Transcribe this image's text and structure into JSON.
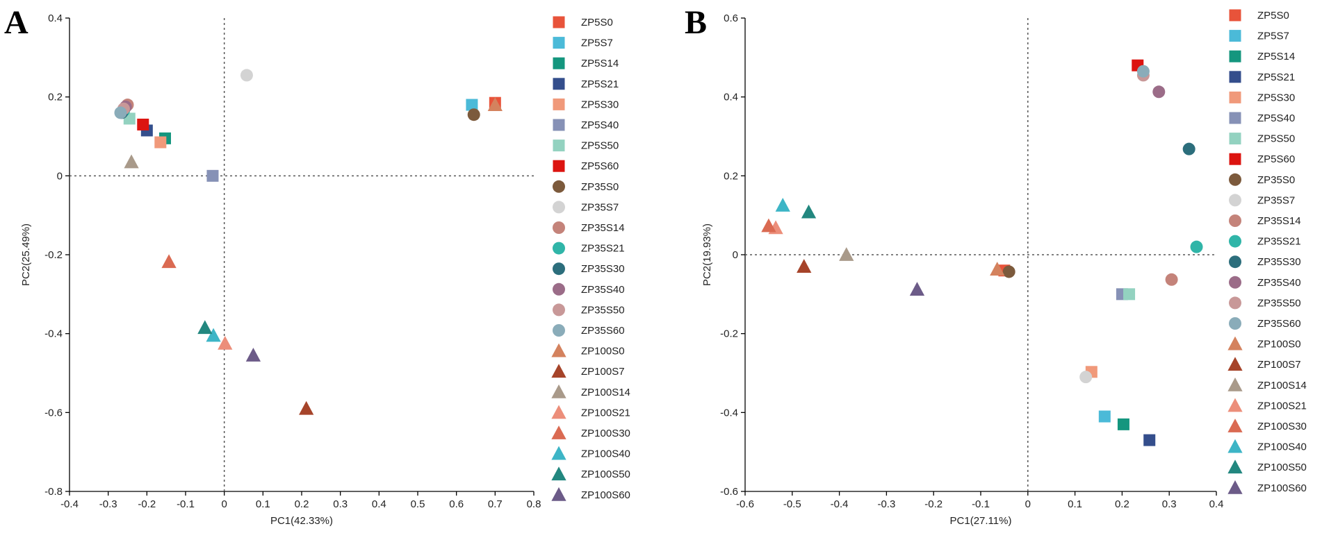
{
  "figure": {
    "panels": [
      "A",
      "B"
    ]
  },
  "chart_data": [
    {
      "panel": "A",
      "type": "scatter",
      "title": "",
      "xlabel": "PC1(42.33%)",
      "ylabel": "PC2(25.49%)",
      "xlim": [
        -0.4,
        0.8
      ],
      "ylim": [
        -0.8,
        0.4
      ],
      "xticks": [
        -0.4,
        -0.3,
        -0.2,
        -0.1,
        0,
        0.1,
        0.2,
        0.3,
        0.4,
        0.5,
        0.6,
        0.7,
        0.8
      ],
      "xtick_labels": [
        "-0.4",
        "-0.3",
        "-0.2",
        "-0.1",
        "0",
        "0.1",
        "0.2",
        "0.3",
        "0.4",
        "0.5",
        "0.6",
        "0.7",
        "0.8"
      ],
      "yticks": [
        -0.8,
        -0.6,
        -0.4,
        -0.2,
        0,
        0.2,
        0.4
      ],
      "ytick_labels": [
        "-0.8",
        "-0.6",
        "-0.4",
        "-0.2",
        "0",
        "0.2",
        "0.4"
      ],
      "zero_lines": true,
      "series": [
        {
          "name": "ZP5S0",
          "shape": "square",
          "color": "#E8533A",
          "x": 0.7,
          "y": 0.185
        },
        {
          "name": "ZP5S7",
          "shape": "square",
          "color": "#4BBAD8",
          "x": 0.64,
          "y": 0.18
        },
        {
          "name": "ZP5S14",
          "shape": "square",
          "color": "#14967E",
          "x": -0.153,
          "y": 0.095
        },
        {
          "name": "ZP5S21",
          "shape": "square",
          "color": "#344E8C",
          "x": -0.2,
          "y": 0.115
        },
        {
          "name": "ZP5S30",
          "shape": "square",
          "color": "#F0997A",
          "x": -0.165,
          "y": 0.085
        },
        {
          "name": "ZP5S40",
          "shape": "square",
          "color": "#8691B6",
          "x": -0.03,
          "y": 0.0
        },
        {
          "name": "ZP5S50",
          "shape": "square",
          "color": "#93D2C0",
          "x": -0.245,
          "y": 0.145
        },
        {
          "name": "ZP5S60",
          "shape": "square",
          "color": "#DC1410",
          "x": -0.21,
          "y": 0.13
        },
        {
          "name": "ZP35S0",
          "shape": "circle",
          "color": "#7C5A3C",
          "x": 0.645,
          "y": 0.155
        },
        {
          "name": "ZP35S7",
          "shape": "circle",
          "color": "#D3D3D3",
          "x": 0.058,
          "y": 0.255
        },
        {
          "name": "ZP35S14",
          "shape": "circle",
          "color": "#C4837A",
          "x": -0.25,
          "y": 0.18
        },
        {
          "name": "ZP35S21",
          "shape": "circle",
          "color": "#30B5A8",
          "x": -0.26,
          "y": 0.165
        },
        {
          "name": "ZP35S30",
          "shape": "circle",
          "color": "#2C6E7C",
          "x": -0.265,
          "y": 0.16
        },
        {
          "name": "ZP35S40",
          "shape": "circle",
          "color": "#9B6C88",
          "x": -0.255,
          "y": 0.175
        },
        {
          "name": "ZP35S50",
          "shape": "circle",
          "color": "#C89898",
          "x": -0.26,
          "y": 0.17
        },
        {
          "name": "ZP35S60",
          "shape": "circle",
          "color": "#8AACB9",
          "x": -0.268,
          "y": 0.16
        },
        {
          "name": "ZP100S0",
          "shape": "triangle",
          "color": "#D4825E",
          "x": 0.7,
          "y": 0.18
        },
        {
          "name": "ZP100S7",
          "shape": "triangle",
          "color": "#A6442A",
          "x": 0.212,
          "y": -0.59
        },
        {
          "name": "ZP100S14",
          "shape": "triangle",
          "color": "#A99A8A",
          "x": -0.24,
          "y": 0.035
        },
        {
          "name": "ZP100S21",
          "shape": "triangle",
          "color": "#EC8E7A",
          "x": 0.002,
          "y": -0.425
        },
        {
          "name": "ZP100S30",
          "shape": "triangle",
          "color": "#DA6A52",
          "x": -0.143,
          "y": -0.218
        },
        {
          "name": "ZP100S40",
          "shape": "triangle",
          "color": "#3DB5C6",
          "x": -0.028,
          "y": -0.405
        },
        {
          "name": "ZP100S50",
          "shape": "triangle",
          "color": "#22877F",
          "x": -0.05,
          "y": -0.385
        },
        {
          "name": "ZP100S60",
          "shape": "triangle",
          "color": "#6C5B88",
          "x": 0.075,
          "y": -0.455
        }
      ]
    },
    {
      "panel": "B",
      "type": "scatter",
      "title": "",
      "xlabel": "PC1(27.11%)",
      "ylabel": "PC2(19.93%)",
      "xlim": [
        -0.6,
        0.4
      ],
      "ylim": [
        -0.6,
        0.6
      ],
      "xticks": [
        -0.6,
        -0.5,
        -0.4,
        -0.3,
        -0.2,
        -0.1,
        0,
        0.1,
        0.2,
        0.3,
        0.4
      ],
      "xtick_labels": [
        "-0.6",
        "-0.5",
        "-0.4",
        "-0.3",
        "-0.2",
        "-0.1",
        "0",
        "0.1",
        "0.2",
        "0.3",
        "0.4"
      ],
      "yticks": [
        -0.6,
        -0.4,
        -0.2,
        0,
        0.2,
        0.4,
        0.6
      ],
      "ytick_labels": [
        "-0.6",
        "-0.4",
        "-0.2",
        "0",
        "0.2",
        "0.4",
        "0.6"
      ],
      "zero_lines": true,
      "series": [
        {
          "name": "ZP5S0",
          "shape": "square",
          "color": "#E8533A",
          "x": -0.05,
          "y": -0.04
        },
        {
          "name": "ZP5S7",
          "shape": "square",
          "color": "#4BBAD8",
          "x": 0.163,
          "y": -0.41
        },
        {
          "name": "ZP5S14",
          "shape": "square",
          "color": "#14967E",
          "x": 0.203,
          "y": -0.43
        },
        {
          "name": "ZP5S21",
          "shape": "square",
          "color": "#344E8C",
          "x": 0.258,
          "y": -0.47
        },
        {
          "name": "ZP5S30",
          "shape": "square",
          "color": "#F0997A",
          "x": 0.135,
          "y": -0.297
        },
        {
          "name": "ZP5S40",
          "shape": "square",
          "color": "#8691B6",
          "x": 0.2,
          "y": -0.1
        },
        {
          "name": "ZP5S50",
          "shape": "square",
          "color": "#93D2C0",
          "x": 0.215,
          "y": -0.1
        },
        {
          "name": "ZP5S60",
          "shape": "square",
          "color": "#DC1410",
          "x": 0.233,
          "y": 0.48
        },
        {
          "name": "ZP35S0",
          "shape": "circle",
          "color": "#7C5A3C",
          "x": -0.04,
          "y": -0.043
        },
        {
          "name": "ZP35S7",
          "shape": "circle",
          "color": "#D3D3D3",
          "x": 0.123,
          "y": -0.31
        },
        {
          "name": "ZP35S14",
          "shape": "circle",
          "color": "#C4837A",
          "x": 0.305,
          "y": -0.063
        },
        {
          "name": "ZP35S21",
          "shape": "circle",
          "color": "#30B5A8",
          "x": 0.358,
          "y": 0.02
        },
        {
          "name": "ZP35S30",
          "shape": "circle",
          "color": "#2C6E7C",
          "x": 0.342,
          "y": 0.268
        },
        {
          "name": "ZP35S40",
          "shape": "circle",
          "color": "#9B6C88",
          "x": 0.278,
          "y": 0.413
        },
        {
          "name": "ZP35S50",
          "shape": "circle",
          "color": "#C89898",
          "x": 0.245,
          "y": 0.455
        },
        {
          "name": "ZP35S60",
          "shape": "circle",
          "color": "#8AACB9",
          "x": 0.245,
          "y": 0.465
        },
        {
          "name": "ZP100S0",
          "shape": "triangle",
          "color": "#D4825E",
          "x": -0.065,
          "y": -0.037
        },
        {
          "name": "ZP100S7",
          "shape": "triangle",
          "color": "#A6442A",
          "x": -0.475,
          "y": -0.03
        },
        {
          "name": "ZP100S14",
          "shape": "triangle",
          "color": "#A99A8A",
          "x": -0.385,
          "y": 0.0
        },
        {
          "name": "ZP100S21",
          "shape": "triangle",
          "color": "#EC8E7A",
          "x": -0.535,
          "y": 0.068
        },
        {
          "name": "ZP100S30",
          "shape": "triangle",
          "color": "#DA6A52",
          "x": -0.55,
          "y": 0.073
        },
        {
          "name": "ZP100S40",
          "shape": "triangle",
          "color": "#3DB5C6",
          "x": -0.52,
          "y": 0.125
        },
        {
          "name": "ZP100S50",
          "shape": "triangle",
          "color": "#22877F",
          "x": -0.465,
          "y": 0.108
        },
        {
          "name": "ZP100S60",
          "shape": "triangle",
          "color": "#6C5B88",
          "x": -0.235,
          "y": -0.088
        }
      ]
    }
  ]
}
